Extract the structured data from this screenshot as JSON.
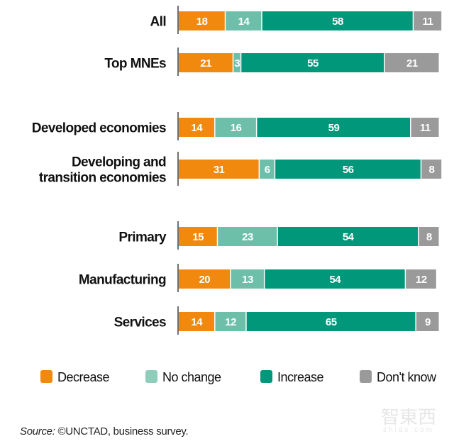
{
  "chart_data": {
    "type": "bar",
    "orientation": "horizontal",
    "stacked": true,
    "title": "",
    "xlabel": "",
    "ylabel": "",
    "unit": "percent",
    "xlim": [
      0,
      100
    ],
    "grid": false,
    "legend_position": "bottom",
    "groups": [
      [
        "All",
        "Top MNEs"
      ],
      [
        "Developed economies",
        "Developing and transition economies"
      ],
      [
        "Primary",
        "Manufacturing",
        "Services"
      ]
    ],
    "categories": [
      "All",
      "Top MNEs",
      "Developed economies",
      "Developing and transition economies",
      "Primary",
      "Manufacturing",
      "Services"
    ],
    "category_lines": [
      [
        "All"
      ],
      [
        "Top MNEs"
      ],
      [
        "Developed economies"
      ],
      [
        "Developing and",
        "transition economies"
      ],
      [
        "Primary"
      ],
      [
        "Manufacturing"
      ],
      [
        "Services"
      ]
    ],
    "series": [
      {
        "name": "Decrease",
        "color": "#F0890D",
        "legend_color": "#F0890D",
        "values": [
          18,
          21,
          14,
          31,
          15,
          20,
          14
        ]
      },
      {
        "name": "No change",
        "color": "#6DBFAA",
        "legend_color": "#8FCDBB",
        "values": [
          14,
          3,
          16,
          6,
          23,
          13,
          12
        ]
      },
      {
        "name": "Increase",
        "color": "#00977A",
        "legend_color": "#00977A",
        "values": [
          58,
          55,
          59,
          56,
          54,
          54,
          65
        ]
      },
      {
        "name": "Don't know",
        "color": "#9A9A9A",
        "legend_color": "#9A9A9A",
        "values": [
          11,
          21,
          11,
          8,
          8,
          12,
          9
        ]
      }
    ]
  },
  "source": {
    "prefix": "Source:",
    "text": " ©UNCTAD, business survey."
  },
  "watermark": {
    "main": "智東西",
    "sub": "zhidx.com"
  }
}
